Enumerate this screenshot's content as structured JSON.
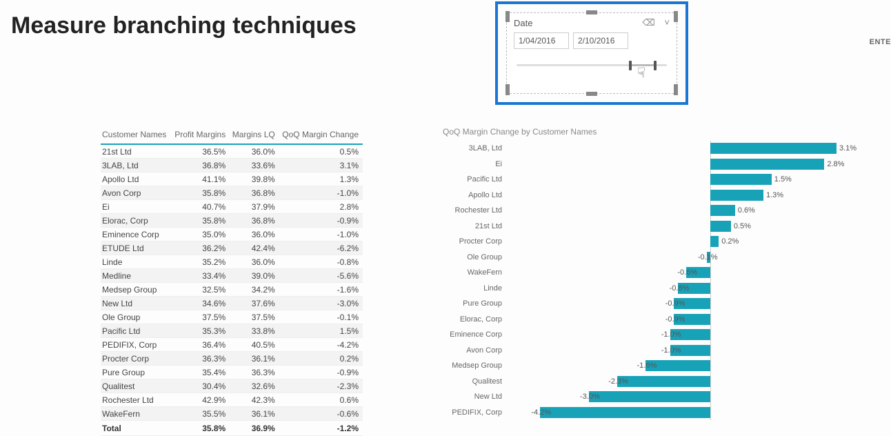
{
  "page": {
    "title": "Measure branching techniques",
    "right_label": "ENTE"
  },
  "slicer": {
    "label": "Date",
    "date_from": "1/04/2016",
    "date_to": "2/10/2016",
    "clear_icon": "eraser-icon",
    "dropdown_icon": "chevron-down-icon",
    "track_color": "#dddddd",
    "thumb_color": "#555555",
    "thumb_left_pct": 72,
    "thumb_right_pct": 88,
    "selection_border_color": "#1976d2"
  },
  "table": {
    "columns": [
      "Customer Names",
      "Profit Margins",
      "Margins LQ",
      "QoQ Margin Change"
    ],
    "col_align": [
      "left",
      "right",
      "right",
      "right"
    ],
    "rows": [
      [
        "21st Ltd",
        "36.5%",
        "36.0%",
        "0.5%"
      ],
      [
        "3LAB, Ltd",
        "36.8%",
        "33.6%",
        "3.1%"
      ],
      [
        "Apollo Ltd",
        "41.1%",
        "39.8%",
        "1.3%"
      ],
      [
        "Avon Corp",
        "35.8%",
        "36.8%",
        "-1.0%"
      ],
      [
        "Ei",
        "40.7%",
        "37.9%",
        "2.8%"
      ],
      [
        "Elorac, Corp",
        "35.8%",
        "36.8%",
        "-0.9%"
      ],
      [
        "Eminence Corp",
        "35.0%",
        "36.0%",
        "-1.0%"
      ],
      [
        "ETUDE Ltd",
        "36.2%",
        "42.4%",
        "-6.2%"
      ],
      [
        "Linde",
        "35.2%",
        "36.0%",
        "-0.8%"
      ],
      [
        "Medline",
        "33.4%",
        "39.0%",
        "-5.6%"
      ],
      [
        "Medsep Group",
        "32.5%",
        "34.2%",
        "-1.6%"
      ],
      [
        "New Ltd",
        "34.6%",
        "37.6%",
        "-3.0%"
      ],
      [
        "Ole Group",
        "37.5%",
        "37.5%",
        "-0.1%"
      ],
      [
        "Pacific Ltd",
        "35.3%",
        "33.8%",
        "1.5%"
      ],
      [
        "PEDIFIX, Corp",
        "36.4%",
        "40.5%",
        "-4.2%"
      ],
      [
        "Procter Corp",
        "36.3%",
        "36.1%",
        "0.2%"
      ],
      [
        "Pure Group",
        "35.4%",
        "36.3%",
        "-0.9%"
      ],
      [
        "Qualitest",
        "30.4%",
        "32.6%",
        "-2.3%"
      ],
      [
        "Rochester Ltd",
        "42.9%",
        "42.3%",
        "0.6%"
      ],
      [
        "WakeFern",
        "35.5%",
        "36.1%",
        "-0.6%"
      ]
    ],
    "total_row": [
      "Total",
      "35.8%",
      "36.9%",
      "-1.2%"
    ],
    "header_border_color": "#18a2b8",
    "alt_row_bg": "#f3f3f3"
  },
  "chart": {
    "type": "bar",
    "title": "QoQ Margin Change by Customer Names",
    "bar_color": "#18a2b8",
    "text_color": "#666666",
    "value_label_color": "#555555",
    "grid_color": "#cccccc",
    "background_color": "#ffffff",
    "category_fontsize": 11,
    "value_fontsize": 11,
    "xlim": [
      -5,
      4
    ],
    "data": [
      {
        "name": "3LAB, Ltd",
        "value": 3.1,
        "label": "3.1%"
      },
      {
        "name": "Ei",
        "value": 2.8,
        "label": "2.8%"
      },
      {
        "name": "Pacific Ltd",
        "value": 1.5,
        "label": "1.5%"
      },
      {
        "name": "Apollo Ltd",
        "value": 1.3,
        "label": "1.3%"
      },
      {
        "name": "Rochester Ltd",
        "value": 0.6,
        "label": "0.6%"
      },
      {
        "name": "21st Ltd",
        "value": 0.5,
        "label": "0.5%"
      },
      {
        "name": "Procter Corp",
        "value": 0.2,
        "label": "0.2%"
      },
      {
        "name": "Ole Group",
        "value": -0.1,
        "label": "-0.1%"
      },
      {
        "name": "WakeFern",
        "value": -0.6,
        "label": "-0.6%"
      },
      {
        "name": "Linde",
        "value": -0.8,
        "label": "-0.8%"
      },
      {
        "name": "Pure Group",
        "value": -0.9,
        "label": "-0.9%"
      },
      {
        "name": "Elorac, Corp",
        "value": -0.9,
        "label": "-0.9%"
      },
      {
        "name": "Eminence Corp",
        "value": -1.0,
        "label": "-1.0%"
      },
      {
        "name": "Avon Corp",
        "value": -1.0,
        "label": "-1.0%"
      },
      {
        "name": "Medsep Group",
        "value": -1.6,
        "label": "-1.6%"
      },
      {
        "name": "Qualitest",
        "value": -2.3,
        "label": "-2.3%"
      },
      {
        "name": "New Ltd",
        "value": -3.0,
        "label": "-3.0%"
      },
      {
        "name": "PEDIFIX, Corp",
        "value": -4.2,
        "label": "-4.2%"
      }
    ]
  }
}
